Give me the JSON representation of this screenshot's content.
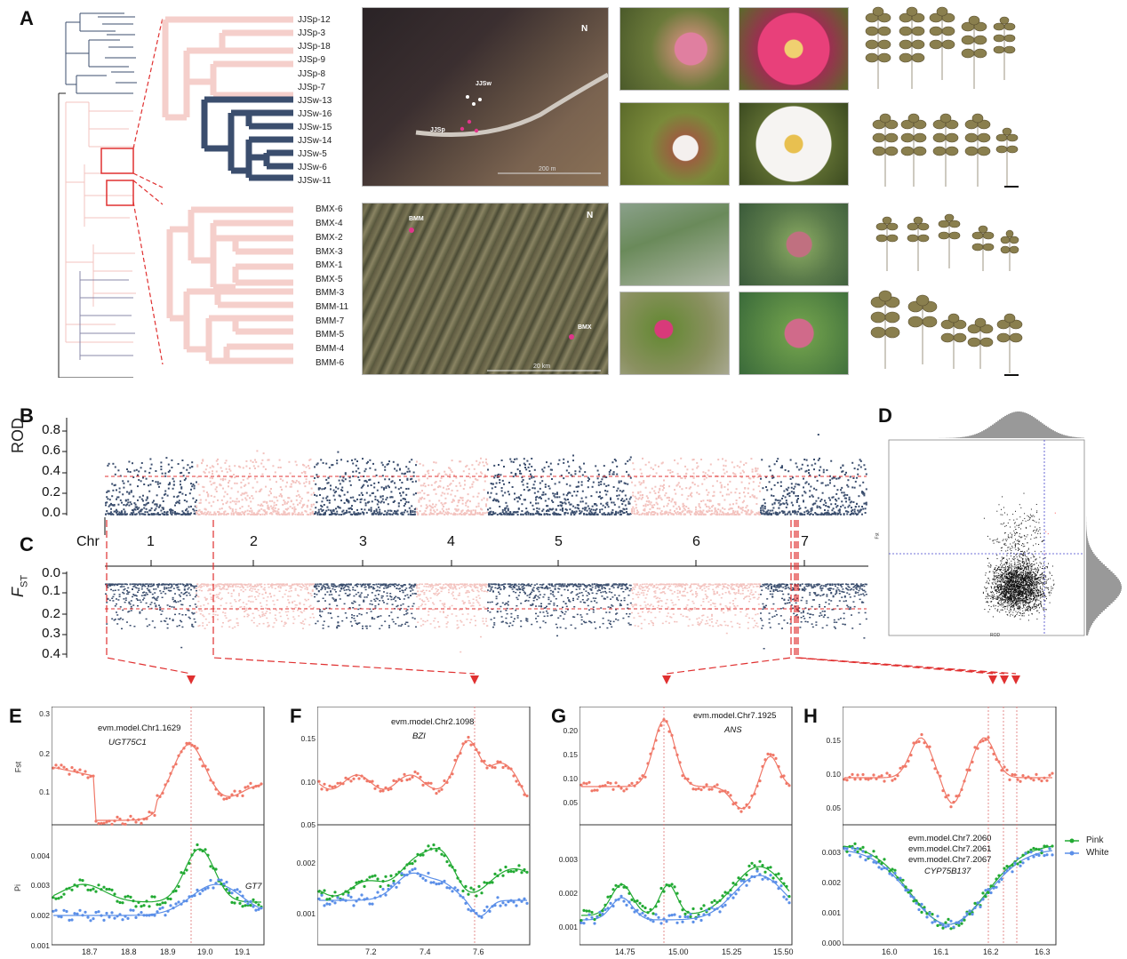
{
  "panels": {
    "A": "A",
    "B": "B",
    "C": "C",
    "D": "D",
    "E": "E",
    "F": "F",
    "G": "G",
    "H": "H"
  },
  "tree_top": {
    "tips": [
      "JJSp-12",
      "JJSp-3",
      "JJSp-18",
      "JJSp-9",
      "JJSp-8",
      "JJSp-7",
      "JJSw-13",
      "JJSw-16",
      "JJSw-15",
      "JJSw-14",
      "JJSw-5",
      "JJSw-6",
      "JJSw-11"
    ]
  },
  "tree_bottom": {
    "tips": [
      "BMX-6",
      "BMX-4",
      "BMX-2",
      "BMX-3",
      "BMX-1",
      "BMX-5",
      "BMM-3",
      "BMM-11",
      "BMM-7",
      "BMM-5",
      "BMM-4",
      "BMM-6"
    ]
  },
  "maps": {
    "top": {
      "labels": [
        "JJSw",
        "JJSp"
      ],
      "scale": "200 m",
      "north": "N"
    },
    "bottom": {
      "labels": [
        "BMM",
        "BMX"
      ],
      "scale": "20 km",
      "north": "N"
    }
  },
  "colors": {
    "dark": "#3b4e6e",
    "pink": "#f3c3bf",
    "red": "#e03030",
    "green": "#22aa33",
    "blue": "#5b8fe8"
  },
  "panelB": {
    "ylabel": "ROD",
    "yticks": [
      "0.8",
      "0.6",
      "0.4",
      "0.2",
      "0.0"
    ],
    "threshold": 0.36
  },
  "chr_axis": {
    "label": "Chr",
    "chromosomes": [
      "1",
      "2",
      "3",
      "4",
      "5",
      "6",
      "7"
    ]
  },
  "panelC": {
    "ylabel": "F",
    "ylabel_sub": "ST",
    "yticks": [
      "0.0",
      "0.1",
      "0.2",
      "0.3",
      "0.4"
    ],
    "threshold": 0.18
  },
  "panelD": {
    "xlabel": "ROD",
    "ylabel": "Fst"
  },
  "panelE": {
    "gene_id": "evm.model.Chr1.1629",
    "gene_name": "UGT75C1",
    "extra_label": "GT7",
    "top_ylabel": "Fst",
    "bottom_ylabel": "Pi",
    "top_yticks": [
      "0.3",
      "0.2",
      "0.1"
    ],
    "bottom_yticks": [
      "0.004",
      "0.003",
      "0.002",
      "0.001"
    ],
    "xticks": [
      "18.7",
      "18.8",
      "18.9",
      "19.0",
      "19.1"
    ]
  },
  "panelF": {
    "gene_id": "evm.model.Chr2.1098",
    "gene_name": "BZI",
    "top_yticks": [
      "0.15",
      "0.10",
      "0.05"
    ],
    "bottom_yticks": [
      "0.002",
      "0.001"
    ],
    "xticks": [
      "7.2",
      "7.4",
      "7.6"
    ]
  },
  "panelG": {
    "gene_id": "evm.model.Chr7.1925",
    "gene_name": "ANS",
    "top_yticks": [
      "0.20",
      "0.15",
      "0.10",
      "0.05"
    ],
    "bottom_yticks": [
      "0.003",
      "0.002",
      "0.001"
    ],
    "xticks": [
      "14.75",
      "15.00",
      "15.25",
      "15.50"
    ]
  },
  "panelH": {
    "gene_ids": [
      "evm.model.Chr7.2060",
      "evm.model.Chr7.2061",
      "evm.model.Chr7.2067"
    ],
    "gene_name": "CYP75B137",
    "top_yticks": [
      "0.15",
      "0.10",
      "0.05"
    ],
    "bottom_yticks": [
      "0.003",
      "0.002",
      "0.001",
      "0.000"
    ],
    "xticks": [
      "16.0",
      "16.1",
      "16.2",
      "16.3"
    ]
  },
  "legend": {
    "pink": "Pink",
    "white": "White"
  }
}
